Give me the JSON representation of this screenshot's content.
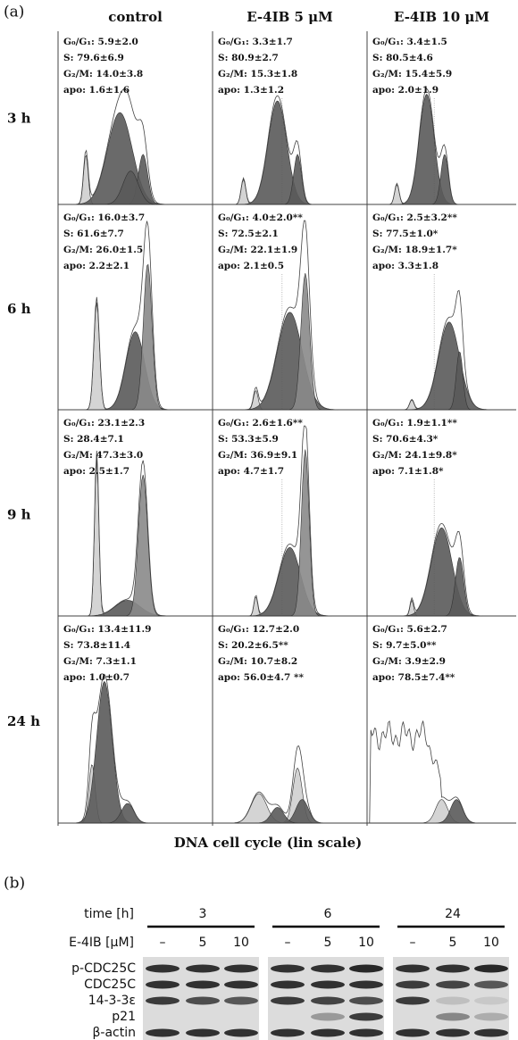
{
  "panel_a": {
    "label": "(a)",
    "columns": [
      "control",
      "E-4IB 5 μM",
      "E-4IB 10 μM"
    ],
    "rows": [
      "3 h",
      "6 h",
      "9 h",
      "24 h"
    ],
    "cells": [
      [
        [
          "G₀/G₁: 5.9±2.0",
          "S: 79.6±6.9",
          "G₂/M: 14.0±3.8",
          "apo: 1.6±1.6"
        ],
        [
          "G₀/G₁: 3.3±1.7",
          "S: 80.9±2.7",
          "G₂/M: 15.3±1.8",
          "apo: 1.3±1.2"
        ],
        [
          "G₀/G₁: 3.4±1.5",
          "S: 80.5±4.6",
          "G₂/M: 15.4±5.9",
          "apo: 2.0±1.9"
        ]
      ],
      [
        [
          "G₀/G₁: 16.0±3.7",
          "S: 61.6±7.7",
          "G₂/M: 26.0±1.5",
          "apo: 2.2±2.1"
        ],
        [
          "G₀/G₁: 4.0±2.0**",
          "S: 72.5±2.1",
          "G₂/M: 22.1±1.9",
          "apo: 2.1±0.5"
        ],
        [
          "G₀/G₁: 2.5±3.2**",
          "S: 77.5±1.0*",
          "G₂/M: 18.9±1.7*",
          "apo: 3.3±1.8"
        ]
      ],
      [
        [
          "G₀/G₁: 23.1±2.3",
          "S: 28.4±7.1",
          "G₂/M: 47.3±3.0",
          "apo: 2.5±1.7"
        ],
        [
          "G₀/G₁: 2.6±1.6**",
          "S: 53.3±5.9",
          "G₂/M: 36.9±9.1",
          "apo: 4.7±1.7"
        ],
        [
          "G₀/G₁: 1.9±1.1**",
          "S: 70.6±4.3*",
          "G₂/M: 24.1±9.8*",
          "apo: 7.1±1.8*"
        ]
      ],
      [
        [
          "G₀/G₁: 13.4±11.9",
          "S: 73.8±11.4",
          "G₂/M: 7.3±1.1",
          "apo: 1.0±0.7"
        ],
        [
          "G₀/G₁: 12.7±2.0",
          "S: 20.2±6.5**",
          "G₂/M: 10.7±8.2",
          "apo: 56.0±4.7 **"
        ],
        [
          "G₀/G₁: 5.6±2.7",
          "S: 9.7±5.0**",
          "G₂/M: 3.9±2.9",
          "apo: 78.5±7.4**"
        ]
      ]
    ],
    "x_axis_label": "DNA cell cycle (lin scale)"
  },
  "panel_b": {
    "label": "(b)",
    "time_label": "time [h]",
    "times": [
      "3",
      "6",
      "24"
    ],
    "treatment_label": "E-4IB [μM]",
    "doses": [
      [
        "–",
        "5",
        "10"
      ],
      [
        "–",
        "5",
        "10"
      ],
      [
        "–",
        "5",
        "10"
      ]
    ],
    "proteins": [
      "p-CDC25C",
      "CDC25C",
      "14-3-3ε",
      "p21",
      "β-actin"
    ]
  }
}
